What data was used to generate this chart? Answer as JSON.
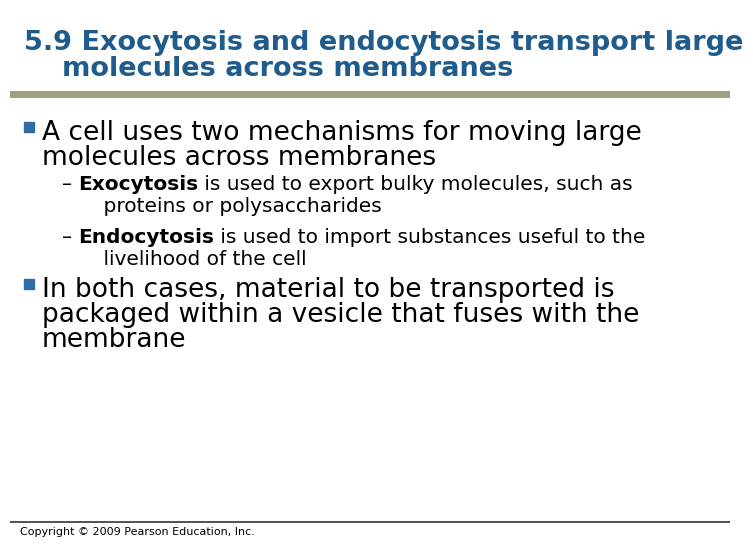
{
  "title_line1": "5.9 Exocytosis and endocytosis transport large",
  "title_line2": "    molecules across membranes",
  "title_color": "#1F5C8B",
  "bg_color": "#FFFFFF",
  "header_bar_color": "#A0A080",
  "bullet_color": "#2E6DA4",
  "bullet1_line1": "A cell uses two mechanisms for moving large",
  "bullet1_line2": "molecules across membranes",
  "sub1_bold": "Exocytosis",
  "sub1_rest": " is used to export bulky molecules, such as",
  "sub1_line2": "    proteins or polysaccharides",
  "sub2_bold": "Endocytosis",
  "sub2_rest": " is used to import substances useful to the",
  "sub2_line2": "    livelihood of the cell",
  "bullet2_line1": "In both cases, material to be transported is",
  "bullet2_line2": "packaged within a vesicle that fuses with the",
  "bullet2_line3": "membrane",
  "copyright": "Copyright © 2009 Pearson Education, Inc.",
  "footer_line_color": "#333333",
  "title_fontsize": 19.5,
  "bullet_fontsize": 19,
  "sub_fontsize": 14.5,
  "copyright_fontsize": 8
}
